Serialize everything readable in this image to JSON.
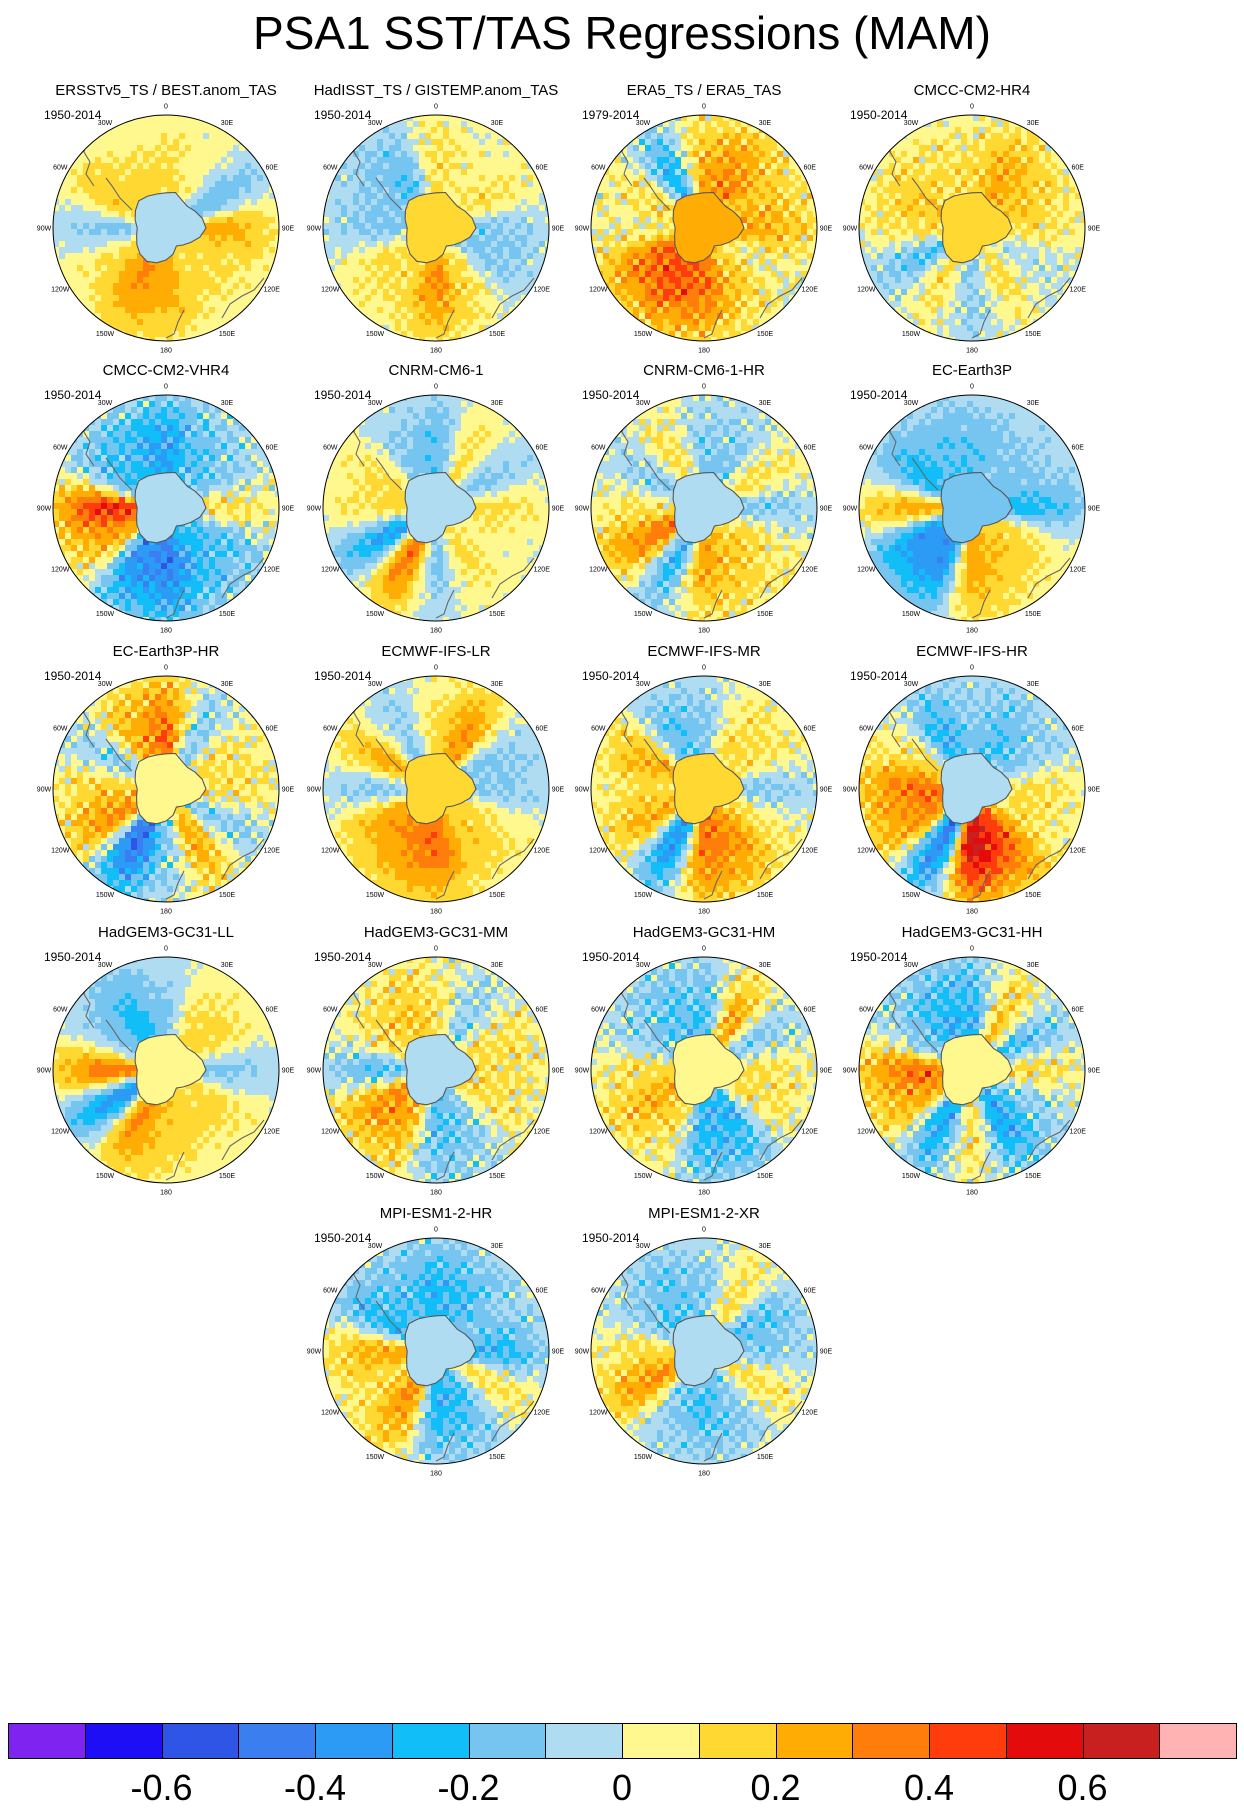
{
  "title": "PSA1 SST/TAS Regressions (MAM)",
  "lon_labels": [
    "0",
    "30E",
    "60E",
    "90E",
    "120E",
    "150E",
    "180",
    "150W",
    "120W",
    "90W",
    "60W",
    "30W"
  ],
  "panels": [
    {
      "title": "ERSSTv5_TS / BEST.anom_TAS",
      "period": "1950-2014",
      "pattern": [
        0.1,
        0.05,
        -0.15,
        0.2,
        0.1,
        0.1,
        0.2,
        0.25,
        0.1,
        -0.1,
        0.15,
        0.1
      ],
      "noise": 0.03
    },
    {
      "title": "HadISST_TS / GISTEMP.anom_TAS",
      "period": "1950-2014",
      "pattern": [
        0.1,
        0.05,
        0.1,
        -0.1,
        -0.1,
        0.1,
        0.25,
        0.1,
        0.1,
        -0.1,
        -0.1,
        -0.15
      ],
      "noise": 0.06
    },
    {
      "title": "ERA5_TS / ERA5_TAS",
      "period": "1979-2014",
      "pattern": [
        0.2,
        0.25,
        0.15,
        0.2,
        0.05,
        0.15,
        0.3,
        0.35,
        0.3,
        0.05,
        0.1,
        -0.2
      ],
      "noise": 0.1
    },
    {
      "title": "CMCC-CM2-HR4",
      "period": "1950-2014",
      "pattern": [
        0.1,
        0.2,
        0.15,
        0.1,
        -0.05,
        0.1,
        -0.1,
        0.1,
        -0.15,
        0.1,
        0.15,
        0.1
      ],
      "noise": 0.08
    },
    {
      "title": "CMCC-CM2-VHR4",
      "period": "1950-2014",
      "pattern": [
        -0.25,
        -0.15,
        -0.1,
        0.1,
        -0.15,
        -0.2,
        -0.35,
        -0.3,
        0.2,
        0.4,
        -0.15,
        -0.2
      ],
      "noise": 0.1
    },
    {
      "title": "CNRM-CM6-1",
      "period": "1950-2014",
      "pattern": [
        -0.15,
        0.1,
        -0.1,
        0.1,
        0.05,
        0.1,
        -0.1,
        0.3,
        -0.25,
        0.1,
        0.1,
        -0.1
      ],
      "noise": 0.04
    },
    {
      "title": "CNRM-CM6-1-HR",
      "period": "1950-2014",
      "pattern": [
        -0.1,
        -0.1,
        0.1,
        -0.1,
        0.1,
        0.15,
        0.2,
        -0.2,
        0.3,
        0.1,
        -0.1,
        0.1
      ],
      "noise": 0.08
    },
    {
      "title": "EC-Earth3P",
      "period": "1950-2014",
      "pattern": [
        -0.15,
        -0.1,
        -0.1,
        -0.2,
        0.1,
        0.15,
        0.2,
        -0.3,
        -0.3,
        0.2,
        -0.2,
        -0.15
      ],
      "noise": 0.04
    },
    {
      "title": "EC-Earth3P-HR",
      "period": "1950-2014",
      "pattern": [
        0.3,
        -0.1,
        0.1,
        0.1,
        -0.1,
        0.2,
        -0.1,
        -0.4,
        0.25,
        0.15,
        -0.1,
        0.2
      ],
      "noise": 0.1
    },
    {
      "title": "ECMWF-IFS-LR",
      "period": "1950-2014",
      "pattern": [
        0.1,
        0.25,
        -0.1,
        -0.1,
        0.1,
        0.15,
        0.3,
        0.25,
        0.2,
        -0.1,
        0.2,
        -0.1
      ],
      "noise": 0.04
    },
    {
      "title": "ECMWF-IFS-MR",
      "period": "1950-2014",
      "pattern": [
        -0.1,
        0.1,
        0.1,
        -0.1,
        0.1,
        0.25,
        0.3,
        -0.3,
        0.2,
        0.1,
        0.2,
        -0.15
      ],
      "noise": 0.07
    },
    {
      "title": "ECMWF-IFS-HR",
      "period": "1950-2014",
      "pattern": [
        -0.1,
        -0.15,
        -0.1,
        0.1,
        0.1,
        0.35,
        0.5,
        -0.35,
        0.25,
        0.3,
        0.1,
        -0.2
      ],
      "noise": 0.08
    },
    {
      "title": "HadGEM3-GC31-LL",
      "period": "1950-2014",
      "pattern": [
        -0.1,
        0.1,
        0.1,
        -0.1,
        0.1,
        0.1,
        0.15,
        0.25,
        -0.3,
        0.3,
        -0.1,
        -0.2
      ],
      "noise": 0.03
    },
    {
      "title": "HadGEM3-GC31-MM",
      "period": "1950-2014",
      "pattern": [
        0.1,
        -0.1,
        0.1,
        0.1,
        0.1,
        -0.1,
        -0.15,
        0.2,
        0.25,
        -0.15,
        0.1,
        0.15
      ],
      "noise": 0.1
    },
    {
      "title": "HadGEM3-GC31-HM",
      "period": "1950-2014",
      "pattern": [
        -0.15,
        0.2,
        -0.1,
        0.1,
        0.1,
        -0.2,
        -0.2,
        0.1,
        0.2,
        0.1,
        -0.1,
        -0.15
      ],
      "noise": 0.1
    },
    {
      "title": "HadGEM3-GC31-HH",
      "period": "1950-2014",
      "pattern": [
        -0.2,
        0.15,
        -0.15,
        0.1,
        -0.1,
        -0.25,
        0.1,
        -0.25,
        0.2,
        0.3,
        -0.1,
        -0.2
      ],
      "noise": 0.1
    },
    {
      "title": "MPI-ESM1-2-HR",
      "period": "1950-2014",
      "pattern": [
        -0.2,
        -0.15,
        -0.1,
        -0.2,
        0.1,
        -0.15,
        -0.2,
        0.25,
        0.1,
        0.2,
        -0.2,
        -0.15
      ],
      "noise": 0.08
    },
    {
      "title": "MPI-ESM1-2-XR",
      "period": "1950-2014",
      "pattern": [
        -0.1,
        0.1,
        -0.15,
        -0.1,
        0.1,
        -0.1,
        -0.15,
        -0.1,
        0.25,
        0.1,
        -0.1,
        -0.15
      ],
      "noise": 0.08
    }
  ],
  "colorbar": {
    "colors": [
      "#7f24f0",
      "#1e0ef5",
      "#2f55e6",
      "#3b7ef0",
      "#2b9bf5",
      "#12bef7",
      "#76c4f0",
      "#b0dcf2",
      "#fff88e",
      "#ffd832",
      "#ffac05",
      "#ff7d0a",
      "#ff3c0c",
      "#e30b0b",
      "#c8201e",
      "#ffb3b3"
    ],
    "labels": [
      "-0.6",
      "-0.4",
      "-0.2",
      "0",
      "0.2",
      "0.4",
      "0.6"
    ],
    "label_after_box": [
      2,
      4,
      6,
      8,
      10,
      12,
      14
    ]
  }
}
